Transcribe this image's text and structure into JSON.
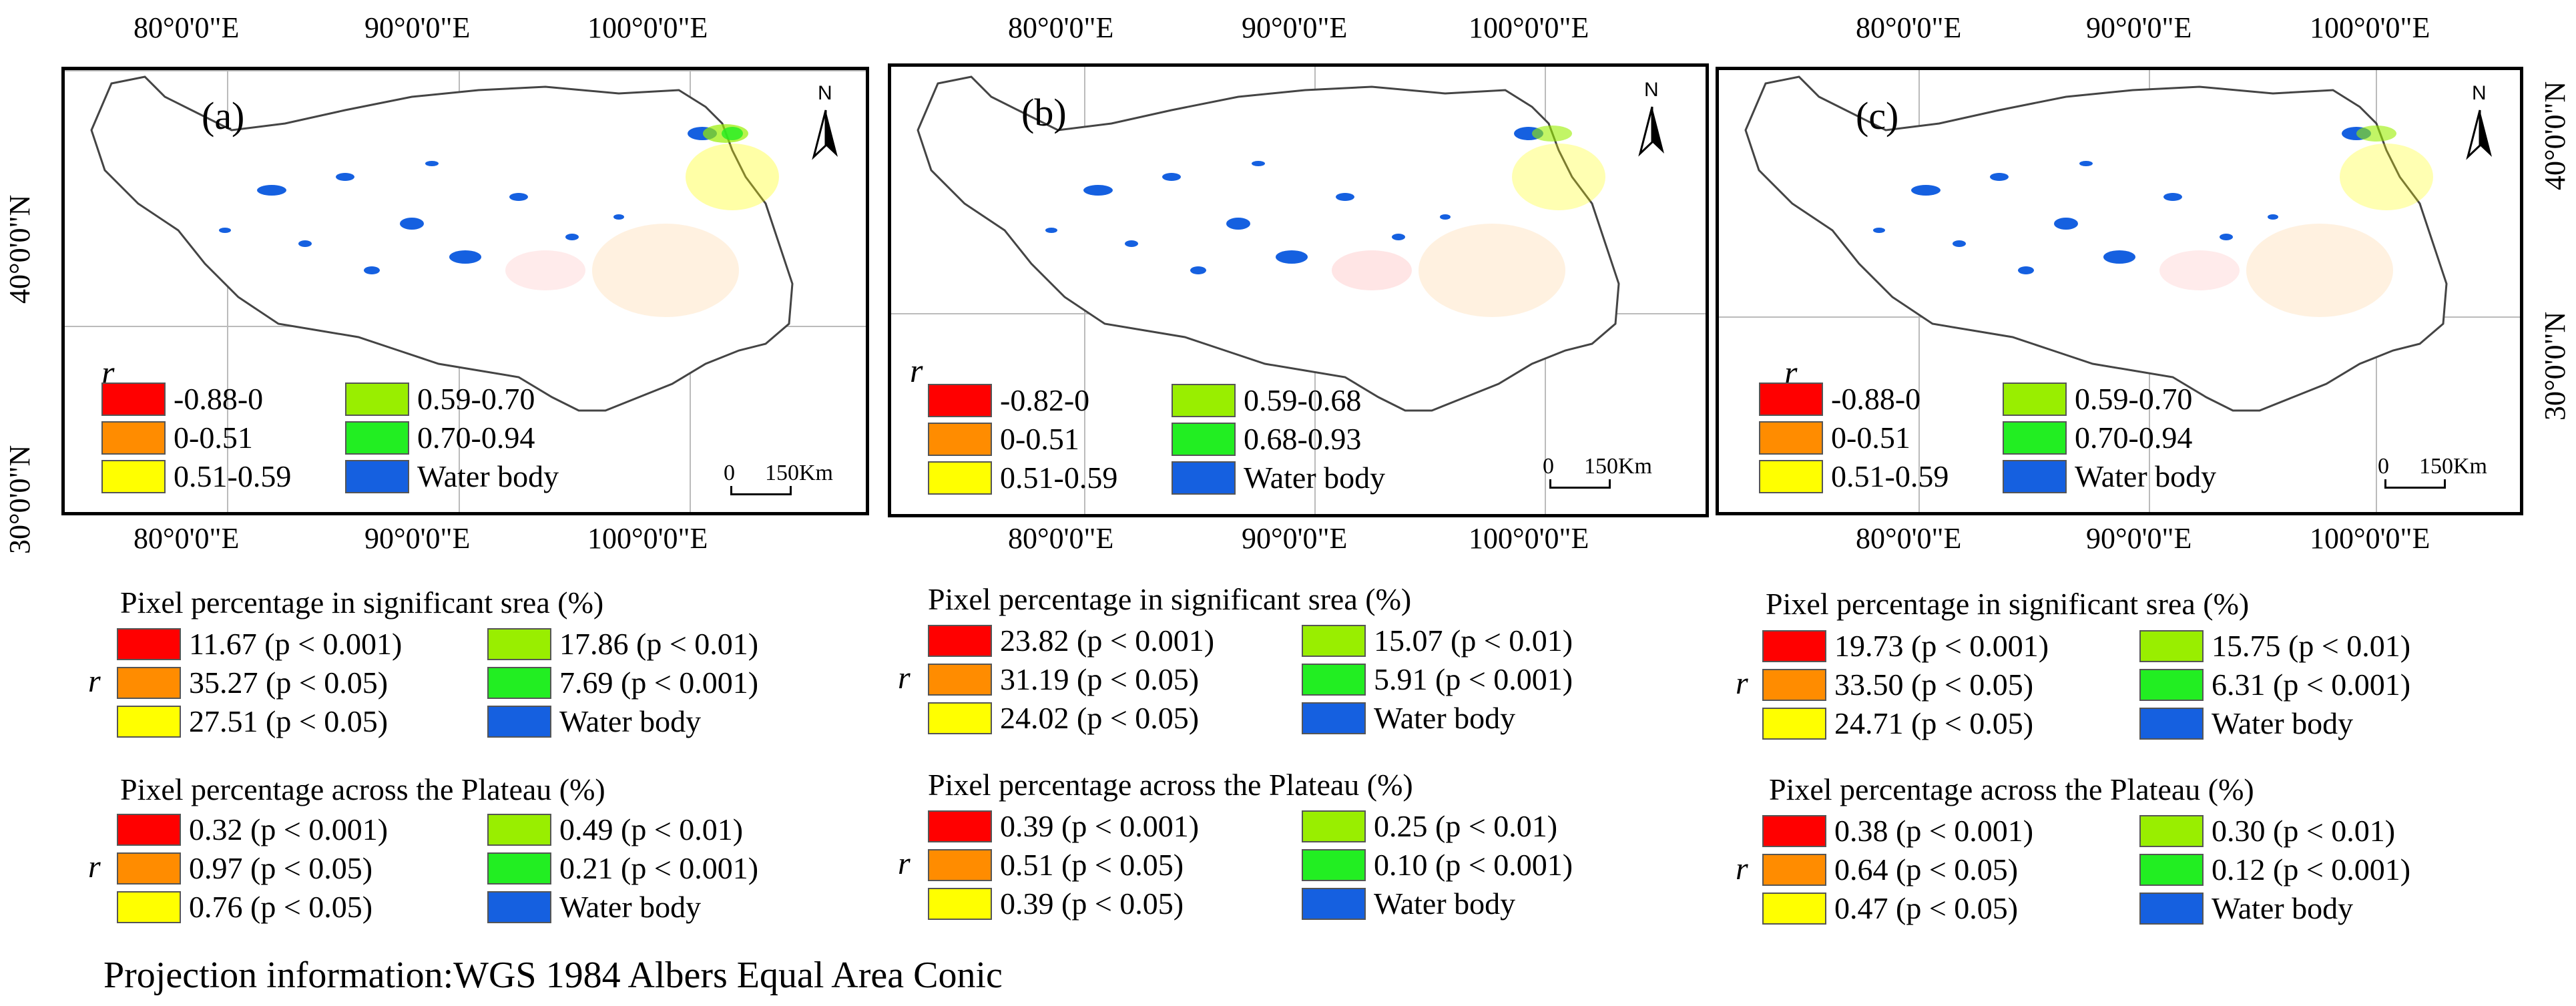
{
  "colors": {
    "red": "#ff0000",
    "orange": "#ff8c00",
    "yellow": "#ffff00",
    "light_green": "#99ee00",
    "green": "#22ee22",
    "water": "#1560e0"
  },
  "axes": {
    "longitude_ticks": [
      "80°0'0\"E",
      "90°0'0\"E",
      "100°0'0\"E"
    ],
    "latitude_ticks": [
      "40°0'0\"N",
      "30°0'0\"N"
    ]
  },
  "map_common": {
    "north_label": "N",
    "scale_zero": "0",
    "scale_distance": "150Km",
    "legend_symbol": "r",
    "water_label": "Water body",
    "stats_symbol": "r"
  },
  "panels": [
    {
      "label": "(a)",
      "legend": [
        "-0.88-0",
        "0-0.51",
        "0.51-0.59",
        "0.59-0.70",
        "0.70-0.94",
        "Water body"
      ],
      "significant_title": "Pixel percentage in significant srea (%)",
      "significant": [
        "11.67 (p < 0.001)",
        "35.27 (p < 0.05)",
        "27.51 (p < 0.05)",
        "17.86 (p < 0.01)",
        "7.69 (p < 0.001)",
        "Water body"
      ],
      "plateau_title": "Pixel percentage across the Plateau (%)",
      "plateau": [
        "0.32 (p < 0.001)",
        "0.97 (p < 0.05)",
        "0.76 (p < 0.05)",
        "0.49 (p < 0.01)",
        "0.21 (p < 0.001)",
        "Water body"
      ]
    },
    {
      "label": "(b)",
      "legend": [
        "-0.82-0",
        "0-0.51",
        "0.51-0.59",
        "0.59-0.68",
        "0.68-0.93",
        "Water body"
      ],
      "significant_title": "Pixel percentage in significant srea (%)",
      "significant": [
        "23.82 (p < 0.001)",
        "31.19 (p < 0.05)",
        "24.02 (p < 0.05)",
        "15.07 (p < 0.01)",
        "5.91 (p < 0.001)",
        "Water body"
      ],
      "plateau_title": "Pixel percentage across the Plateau (%)",
      "plateau": [
        "0.39 (p < 0.001)",
        "0.51 (p < 0.05)",
        "0.39 (p < 0.05)",
        "0.25 (p < 0.01)",
        "0.10 (p < 0.001)",
        "Water body"
      ]
    },
    {
      "label": "(c)",
      "legend": [
        "-0.88-0",
        "0-0.51",
        "0.51-0.59",
        "0.59-0.70",
        "0.70-0.94",
        "Water body"
      ],
      "significant_title": "Pixel percentage in significant srea (%)",
      "significant": [
        "19.73 (p < 0.001)",
        "33.50 (p < 0.05)",
        "24.71 (p < 0.05)",
        "15.75 (p < 0.01)",
        "6.31 (p < 0.001)",
        "Water body"
      ],
      "plateau_title": "Pixel percentage across the Plateau (%)",
      "plateau": [
        "0.38 (p < 0.001)",
        "0.64 (p < 0.05)",
        "0.47 (p < 0.05)",
        "0.30 (p < 0.01)",
        "0.12 (p < 0.001)",
        "Water body"
      ]
    }
  ],
  "projection": "Projection information:WGS 1984 Albers Equal Area Conic"
}
